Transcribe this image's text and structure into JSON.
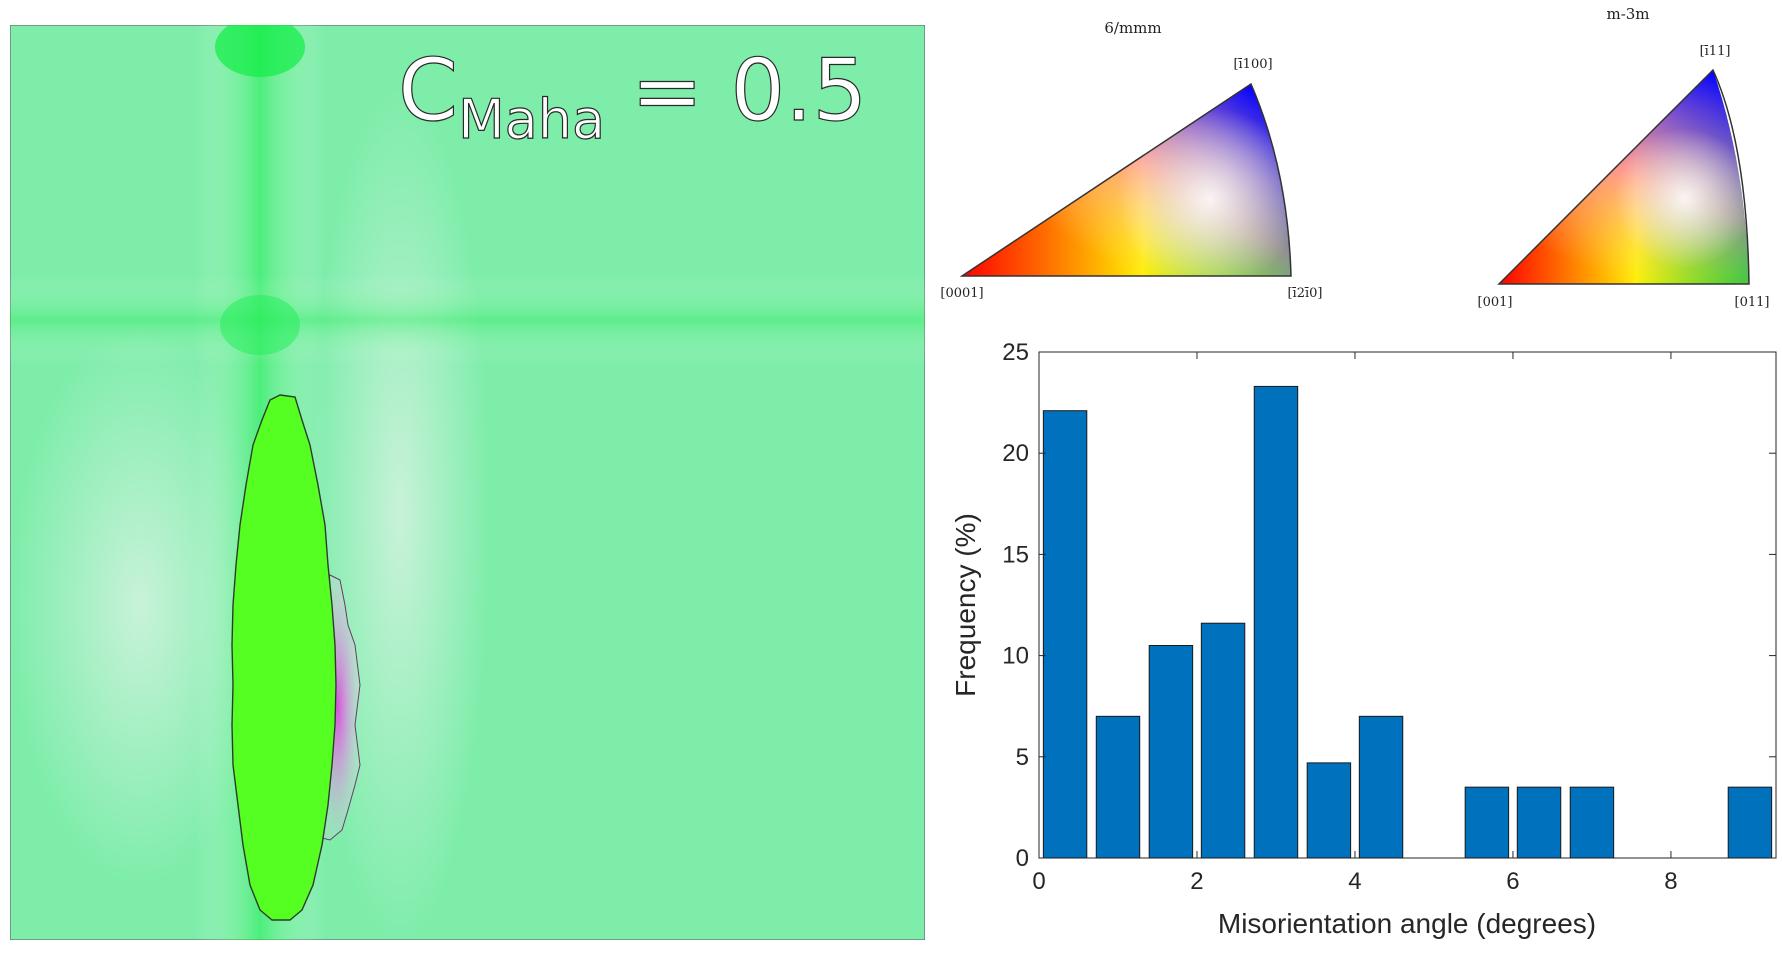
{
  "map": {
    "annotation_main": "C",
    "annotation_sub": "Maha",
    "annotation_value": "= 0.5",
    "colors": {
      "background": "#7eedaa",
      "grain": "#55ff22",
      "pink": "#e87de8",
      "band": "#22ee55"
    }
  },
  "ipf": [
    {
      "title": "6/mmm",
      "vertex_labels": [
        "[0001]",
        "[ī2ī0]",
        "[ī100]"
      ],
      "vertex_colors": [
        "#ff0000",
        "#00cc00",
        "#0000ff"
      ]
    },
    {
      "title": "m-3m",
      "vertex_labels": [
        "[001]",
        "[011]",
        "[ī11]"
      ],
      "vertex_colors": [
        "#ff0000",
        "#00cc00",
        "#0000ff"
      ]
    }
  ],
  "chart_data": {
    "type": "bar",
    "title": "",
    "xlabel": "Misorientation angle (degrees)",
    "ylabel": "Frequency (%)",
    "x": [
      0.33,
      1.0,
      1.67,
      2.33,
      3.0,
      3.67,
      4.33,
      5.67,
      6.33,
      7.0,
      9.0
    ],
    "values": [
      22.1,
      7.0,
      10.5,
      11.6,
      23.3,
      4.7,
      7.0,
      3.5,
      3.5,
      3.5,
      3.5
    ],
    "bar_width": 0.55,
    "xlim": [
      0,
      9.33
    ],
    "ylim": [
      0,
      25
    ],
    "xticks": [
      0,
      2,
      4,
      6,
      8
    ],
    "yticks": [
      0,
      5,
      10,
      15,
      20,
      25
    ],
    "bar_color": "#0072bd",
    "grid": false
  }
}
